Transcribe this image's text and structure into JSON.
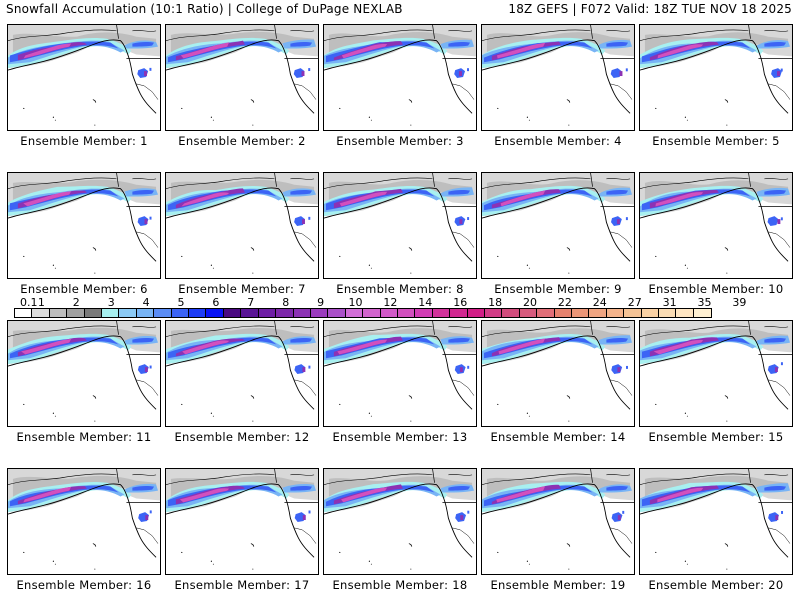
{
  "header": {
    "left_title": "Snowfall Accumulation (10:1 Ratio) | College of DuPage NEXLAB",
    "right_title": "18Z GEFS | F072 Valid: 18Z TUE NOV 18 2025"
  },
  "panels": [
    {
      "label": "Ensemble Member: 1"
    },
    {
      "label": "Ensemble Member: 2"
    },
    {
      "label": "Ensemble Member: 3"
    },
    {
      "label": "Ensemble Member: 4"
    },
    {
      "label": "Ensemble Member: 5"
    },
    {
      "label": "Ensemble Member: 6"
    },
    {
      "label": "Ensemble Member: 7"
    },
    {
      "label": "Ensemble Member: 8"
    },
    {
      "label": "Ensemble Member: 9"
    },
    {
      "label": "Ensemble Member: 10"
    },
    {
      "label": "Ensemble Member: 11"
    },
    {
      "label": "Ensemble Member: 12"
    },
    {
      "label": "Ensemble Member: 13"
    },
    {
      "label": "Ensemble Member: 14"
    },
    {
      "label": "Ensemble Member: 15"
    },
    {
      "label": "Ensemble Member: 16"
    },
    {
      "label": "Ensemble Member: 17"
    },
    {
      "label": "Ensemble Member: 18"
    },
    {
      "label": "Ensemble Member: 19"
    },
    {
      "label": "Ensemble Member: 20"
    }
  ],
  "colorbar": {
    "tick_labels": [
      "0.1",
      "1",
      "2",
      "3",
      "4",
      "5",
      "6",
      "7",
      "8",
      "9",
      "10",
      "12",
      "14",
      "16",
      "18",
      "20",
      "22",
      "24",
      "27",
      "31",
      "35",
      "39"
    ],
    "colors": [
      "#ffffff",
      "#dcdcdc",
      "#bdbdbd",
      "#a0a0a0",
      "#7a7a7a",
      "#a8f0f0",
      "#8ccaf5",
      "#78b4f5",
      "#5a8cf5",
      "#3c64f5",
      "#1e3cf5",
      "#0a14f5",
      "#4b0a82",
      "#5a1496",
      "#6e1ea5",
      "#7d28aa",
      "#8c32b4",
      "#9b3cbe",
      "#aa50c8",
      "#d26ed7",
      "#d264cd",
      "#d25ac8",
      "#d250be",
      "#d23cb4",
      "#d2329b",
      "#d22891",
      "#d21e87",
      "#d23c87",
      "#d24c7d",
      "#d75a7d",
      "#e16e78",
      "#e6826e",
      "#eb9678",
      "#f0a582",
      "#f5b48c",
      "#f5c396",
      "#fad2a5",
      "#fadcb4",
      "#ffe6c3",
      "#fff0d2"
    ]
  },
  "map_colors": {
    "light_gray": "#d8d8d8",
    "mid_gray": "#a9a9a9",
    "cyan": "#a8f0f0",
    "light_blue": "#78b4f5",
    "blue": "#3c64f5",
    "purple": "#8c32b4",
    "magenta": "#d250be"
  }
}
